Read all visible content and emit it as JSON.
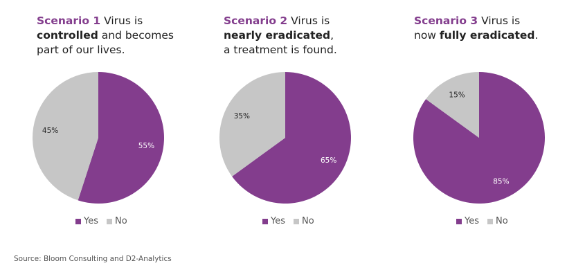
{
  "colors": {
    "yes": "#833d8d",
    "no": "#c6c6c6",
    "scenario_accent": "#833d8d"
  },
  "source": "Source: Bloom Consulting and D2-Analytics",
  "chart_data": [
    {
      "type": "pie",
      "heading": {
        "scenario": "Scenario 1",
        "lines": [
          [
            {
              "text": "Virus is",
              "bold": false
            }
          ],
          [
            {
              "text": "controlled",
              "bold": true
            },
            {
              "text": "and becomes",
              "bold": false
            }
          ],
          [
            {
              "text": "part of our lives.",
              "bold": false
            }
          ]
        ]
      },
      "labels": [
        "Yes",
        "No"
      ],
      "values": [
        55,
        45
      ],
      "data_labels": [
        "55%",
        "45%"
      ],
      "legend": [
        "Yes",
        "No"
      ],
      "legend_position": "bottom"
    },
    {
      "type": "pie",
      "heading": {
        "scenario": "Scenario 2",
        "lines": [
          [
            {
              "text": "Virus is",
              "bold": false
            }
          ],
          [
            {
              "text": "nearly eradicated",
              "bold": true
            },
            {
              "text": ",",
              "bold": false
            }
          ],
          [
            {
              "text": "a treatment is found.",
              "bold": false
            }
          ]
        ]
      },
      "labels": [
        "Yes",
        "No"
      ],
      "values": [
        65,
        35
      ],
      "data_labels": [
        "65%",
        "35%"
      ],
      "legend": [
        "Yes",
        "No"
      ],
      "legend_position": "bottom"
    },
    {
      "type": "pie",
      "heading": {
        "scenario": "Scenario 3",
        "lines": [
          [
            {
              "text": "Virus is",
              "bold": false
            }
          ],
          [
            {
              "text": "now",
              "bold": false
            },
            {
              "text": "fully eradicated",
              "bold": true
            },
            {
              "text": ".",
              "bold": false
            }
          ]
        ]
      },
      "labels": [
        "Yes",
        "No"
      ],
      "values": [
        85,
        15
      ],
      "data_labels": [
        "85%",
        "15%"
      ],
      "legend": [
        "Yes",
        "No"
      ],
      "legend_position": "bottom"
    }
  ]
}
